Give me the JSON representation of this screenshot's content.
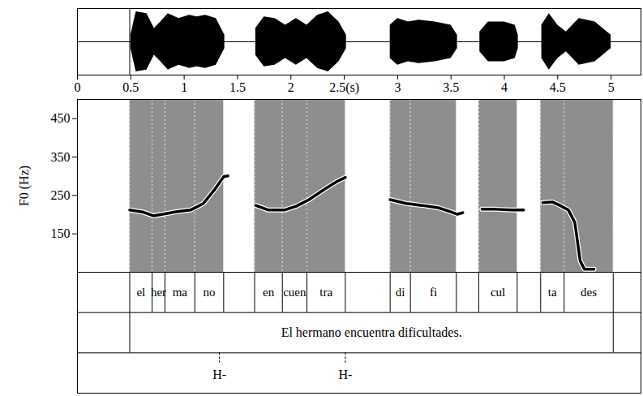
{
  "chart_data": {
    "type": "line",
    "ylabel": "F0 (Hz)",
    "xlim": [
      0,
      5.28
    ],
    "xticks": [
      0,
      0.5,
      1,
      1.5,
      2,
      {
        "value": 2.5,
        "label": "2.5(s)"
      },
      3,
      3.5,
      4,
      4.5,
      5
    ],
    "ylim": [
      50,
      500
    ],
    "yticks": [
      150,
      250,
      350,
      450
    ],
    "color": "#000000",
    "x": [
      0.49,
      0.61,
      0.71,
      0.8,
      0.91,
      1.06,
      1.18,
      1.29,
      1.37,
      1.41,
      1.5,
      1.67,
      1.79,
      1.94,
      2.05,
      2.17,
      2.32,
      2.43,
      2.51,
      2.7,
      2.93,
      3.08,
      3.23,
      3.38,
      3.5,
      3.56,
      3.61,
      3.7,
      3.79,
      3.92,
      4.07,
      4.18,
      4.27,
      4.36,
      4.45,
      4.52,
      4.6,
      4.66,
      4.71,
      4.75,
      4.84
    ],
    "values": [
      212,
      207,
      197,
      201,
      207,
      212,
      229,
      267,
      299,
      301,
      null,
      224,
      212,
      212,
      222,
      239,
      267,
      286,
      297,
      null,
      239,
      229,
      224,
      218,
      207,
      201,
      205,
      null,
      214,
      214,
      212,
      212,
      null,
      231,
      233,
      224,
      212,
      180,
      80,
      58,
      58
    ],
    "waveform": {
      "ylim": [
        -1,
        1
      ],
      "x": [
        0.5,
        0.55,
        0.65,
        0.72,
        0.78,
        0.85,
        0.95,
        1.05,
        1.12,
        1.2,
        1.3,
        1.38,
        1.5,
        1.67,
        1.75,
        1.85,
        1.95,
        2.05,
        2.15,
        2.25,
        2.35,
        2.45,
        2.52,
        2.7,
        2.93,
        3.0,
        3.1,
        3.2,
        3.35,
        3.5,
        3.56,
        3.65,
        3.77,
        3.85,
        4.0,
        4.1,
        4.13,
        4.25,
        4.35,
        4.42,
        4.5,
        4.58,
        4.7,
        4.85,
        5.0
      ],
      "values": [
        0.2,
        0.9,
        0.85,
        0.4,
        0.6,
        0.85,
        0.7,
        0.8,
        0.75,
        0.8,
        0.7,
        0.2,
        null,
        0.4,
        0.75,
        0.7,
        0.5,
        0.7,
        0.5,
        0.8,
        0.9,
        0.6,
        0.2,
        null,
        0.5,
        0.7,
        0.6,
        0.65,
        0.6,
        0.5,
        0.2,
        null,
        0.3,
        0.6,
        0.6,
        0.5,
        0.2,
        null,
        0.5,
        0.85,
        0.5,
        0.3,
        0.7,
        0.6,
        0.2
      ]
    },
    "tiers": [
      {
        "intervals": [
          {
            "start": 0.49,
            "end": 0.7,
            "label": "el"
          },
          {
            "start": 0.7,
            "end": 0.82,
            "label": "her"
          },
          {
            "start": 0.82,
            "end": 1.1,
            "label": "ma"
          },
          {
            "start": 1.1,
            "end": 1.37,
            "label": "no"
          },
          {
            "start": 1.66,
            "end": 1.92,
            "label": "en"
          },
          {
            "start": 1.92,
            "end": 2.15,
            "label": "cuen"
          },
          {
            "start": 2.15,
            "end": 2.51,
            "label": "tra"
          },
          {
            "start": 2.93,
            "end": 3.12,
            "label": "di"
          },
          {
            "start": 3.12,
            "end": 3.55,
            "label": "fi"
          },
          {
            "start": 3.76,
            "end": 4.12,
            "label": "cul"
          },
          {
            "start": 4.34,
            "end": 4.56,
            "label": "ta"
          },
          {
            "start": 4.56,
            "end": 5.02,
            "label": "des"
          }
        ]
      },
      {
        "intervals": [
          {
            "start": 0.49,
            "end": 5.02,
            "label": "El hermano encuentra dificultades."
          }
        ]
      },
      {
        "points": [
          {
            "time": 1.33,
            "label": "H-"
          },
          {
            "time": 2.51,
            "label": "H-"
          }
        ]
      }
    ]
  }
}
